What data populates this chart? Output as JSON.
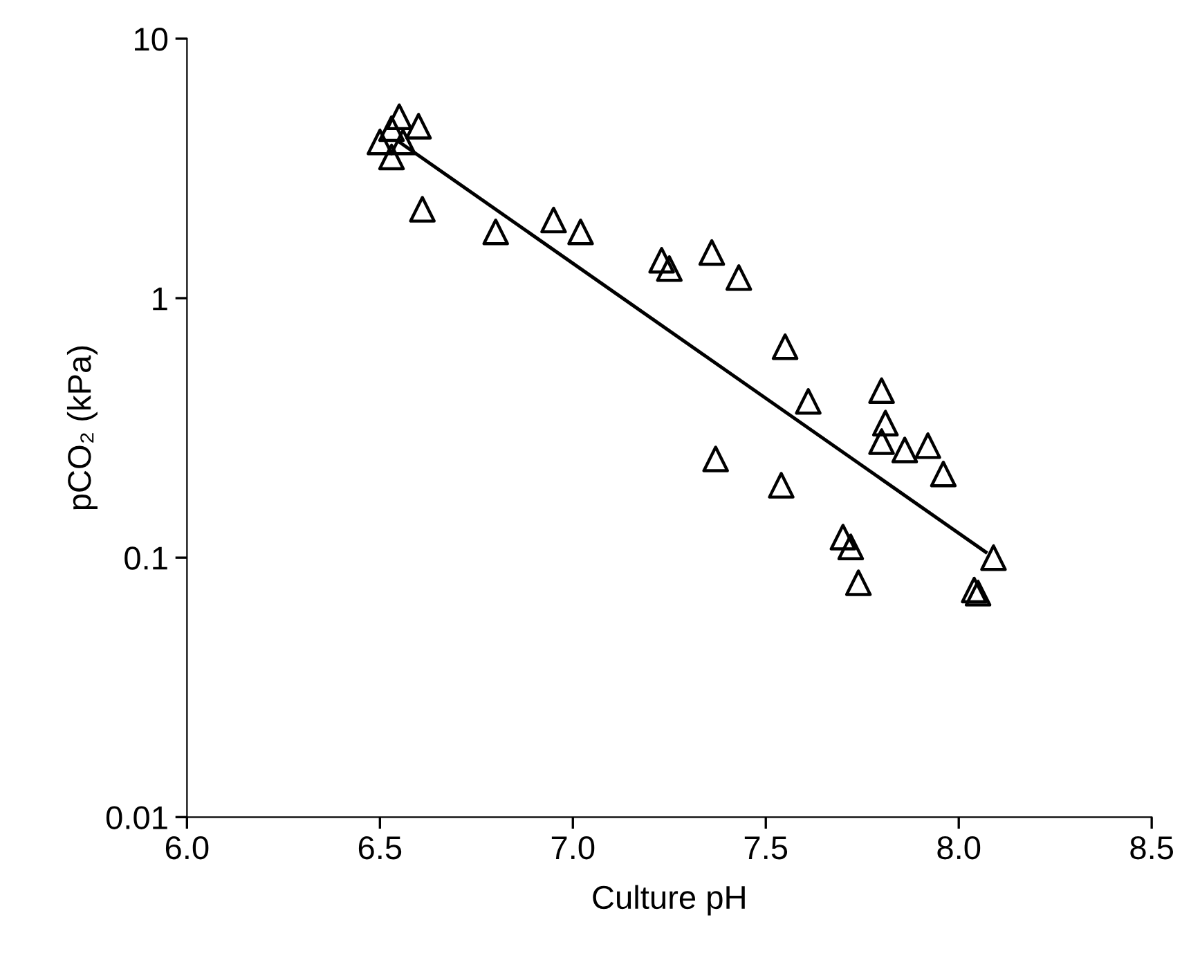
{
  "chart_data": {
    "type": "scatter",
    "xlabel": "Culture pH",
    "ylabel": "pCO₂ (kPa)",
    "log": "y",
    "grid": false,
    "xlim": [
      6.0,
      8.5
    ],
    "ylim": [
      0.01,
      10
    ],
    "xticks": [
      {
        "value": 6.0,
        "label": "6.0"
      },
      {
        "value": 6.5,
        "label": "6.5"
      },
      {
        "value": 7.0,
        "label": "7.0"
      },
      {
        "value": 7.5,
        "label": "7.5"
      },
      {
        "value": 8.0,
        "label": "8.0"
      },
      {
        "value": 8.5,
        "label": "8.5"
      }
    ],
    "yticks": [
      0.01,
      0.1,
      1,
      10
    ],
    "series": [
      {
        "color": "#000000",
        "marker": "triangle",
        "x": [
          6.5,
          6.53,
          6.55,
          6.53,
          6.56,
          6.6,
          6.61,
          6.8,
          6.95,
          7.02,
          7.23,
          7.25,
          7.36,
          7.37,
          7.43,
          7.54,
          7.55,
          7.61,
          7.7,
          7.72,
          7.74,
          7.8,
          7.81,
          7.8,
          7.86,
          7.92,
          7.96,
          8.04,
          8.05,
          8.09
        ],
        "values": [
          4.0,
          4.5,
          5.0,
          3.5,
          4.0,
          4.6,
          2.2,
          1.8,
          2.0,
          1.8,
          1.4,
          1.3,
          1.5,
          0.24,
          1.2,
          0.19,
          0.65,
          0.4,
          0.12,
          0.11,
          0.08,
          0.44,
          0.33,
          0.28,
          0.26,
          0.27,
          0.21,
          0.075,
          0.073,
          0.1
        ]
      },
      {
        "type": "line",
        "color": "#000000",
        "marker": "none",
        "line_style": "solid",
        "x": [
          6.55,
          8.07
        ],
        "values": [
          4.0,
          0.105
        ]
      }
    ]
  }
}
